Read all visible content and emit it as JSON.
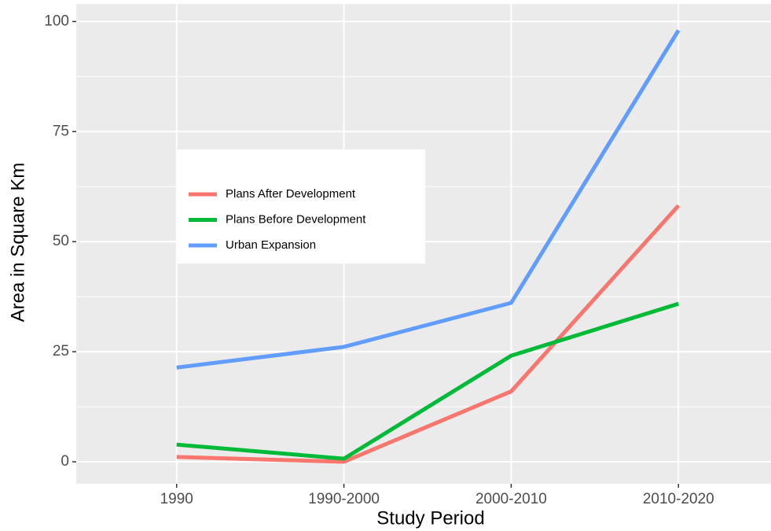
{
  "chart_data": {
    "type": "line",
    "x_label": "Study Period",
    "y_label": "Area in Square Km",
    "categories": [
      "1990",
      "1990-2000",
      "2000-2010",
      "2010-2020"
    ],
    "series": [
      {
        "name": "Plans After Development",
        "color": "#f8766d",
        "values": [
          1.1,
          0,
          16,
          58.2
        ]
      },
      {
        "name": "Plans Before Development",
        "color": "#00ba38",
        "values": [
          3.9,
          0.7,
          24.1,
          35.9
        ]
      },
      {
        "name": "Urban Expansion",
        "color": "#619cff",
        "values": [
          21.4,
          26.1,
          36.1,
          98
        ]
      }
    ],
    "ylim": [
      -5,
      104
    ],
    "yticks": [
      0,
      25,
      50,
      75,
      100
    ],
    "grid": true
  }
}
